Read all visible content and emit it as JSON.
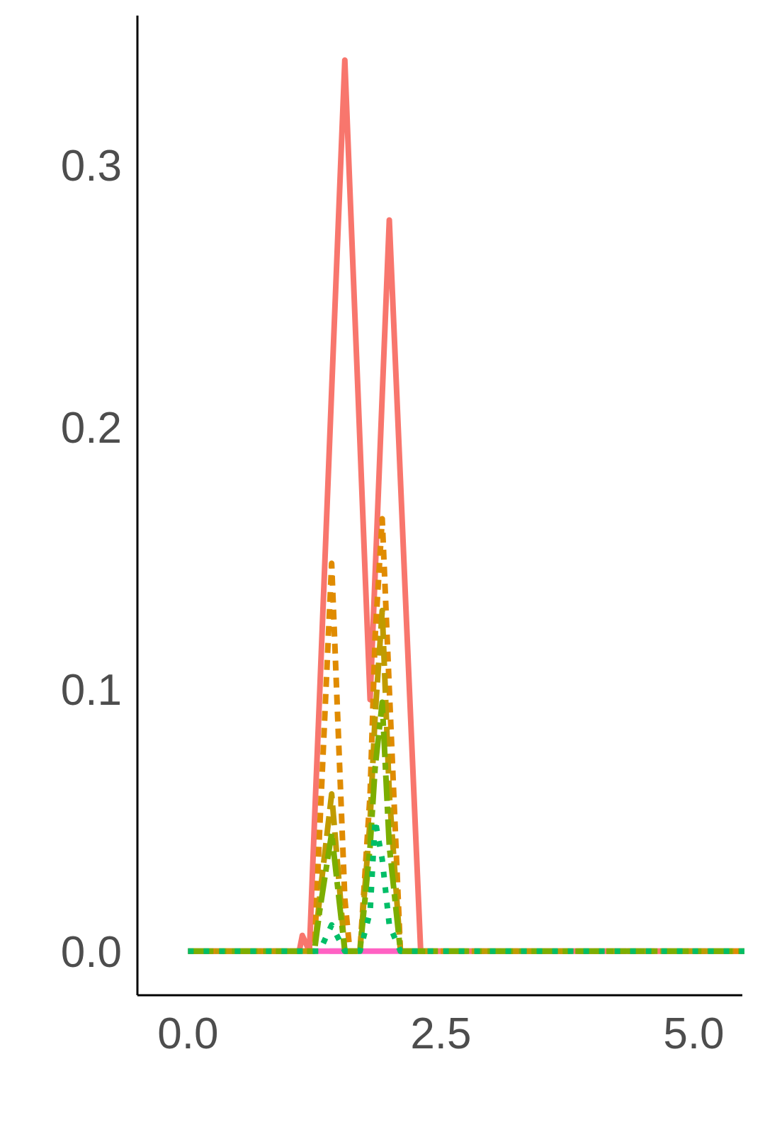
{
  "chart_data": {
    "type": "line",
    "x": [
      0,
      0.5,
      1.0,
      1.1,
      1.13,
      1.2,
      1.25,
      1.3,
      1.42,
      1.55,
      1.6,
      1.7,
      1.8,
      1.85,
      1.92,
      1.99,
      2.1,
      2.15,
      2.3,
      2.5,
      3,
      4,
      5,
      5.5
    ],
    "series": [
      {
        "color": "#C77CFF",
        "dash": "40 60",
        "values": [
          0,
          0,
          0,
          0,
          0,
          0,
          0,
          0,
          0,
          0,
          0,
          0,
          0,
          0,
          0,
          0,
          0,
          0,
          0,
          0,
          0,
          0,
          0,
          0
        ]
      },
      {
        "color": "#FF61C3",
        "dash": "none",
        "values": [
          0,
          0,
          0,
          0,
          0,
          0,
          0,
          0,
          0,
          0,
          0,
          0,
          0,
          0,
          0,
          0,
          0,
          0,
          0,
          0,
          0,
          0,
          0,
          0
        ]
      },
      {
        "color": "#F8766D",
        "dash": "none",
        "values": [
          0,
          0,
          0,
          0,
          0.006,
          0,
          0.049,
          0.097,
          0.214,
          0.34,
          0.291,
          0.194,
          0.096,
          0.144,
          0.212,
          0.279,
          0.18,
          0.135,
          0,
          0,
          0,
          0,
          0,
          0
        ]
      },
      {
        "color": "#E08B00",
        "dash": "14 10",
        "values": [
          0,
          0,
          0,
          0,
          0,
          0,
          0,
          0.045,
          0.148,
          0.02,
          0,
          0,
          0.06,
          0.12,
          0.165,
          0.1,
          0,
          0,
          0,
          0,
          0,
          0,
          0,
          0
        ]
      },
      {
        "color": "#C09B00",
        "dash": "28 10",
        "values": [
          0,
          0,
          0,
          0,
          0,
          0,
          0,
          0.02,
          0.06,
          0,
          0,
          0,
          0.05,
          0.09,
          0.13,
          0.06,
          0,
          0,
          0,
          0,
          0,
          0,
          0,
          0
        ]
      },
      {
        "color": "#7CAE00",
        "dash": "36 8 10 8",
        "values": [
          0,
          0,
          0,
          0,
          0,
          0,
          0,
          0.015,
          0.045,
          0,
          0,
          0,
          0.04,
          0.07,
          0.095,
          0.04,
          0,
          0,
          0,
          0,
          0,
          0,
          0,
          0
        ]
      },
      {
        "color": "#00BE67",
        "dash": "8 14",
        "values": [
          0,
          0,
          0,
          0,
          0,
          0,
          0,
          0,
          0.01,
          0,
          0,
          0,
          0.015,
          0.05,
          0.035,
          0.01,
          0,
          0,
          0,
          0,
          0,
          0,
          0,
          0
        ]
      }
    ],
    "xlim": [
      -0.5,
      5.48
    ],
    "ylim": [
      -0.0168,
      0.357
    ],
    "xticks": [
      {
        "value": 0,
        "label": "0.0"
      },
      2.5,
      {
        "value": 5,
        "label": "5.0"
      }
    ],
    "yticks": [
      {
        "value": 0,
        "label": "0.0"
      },
      0.1,
      0.2,
      0.3
    ],
    "grid": false
  }
}
